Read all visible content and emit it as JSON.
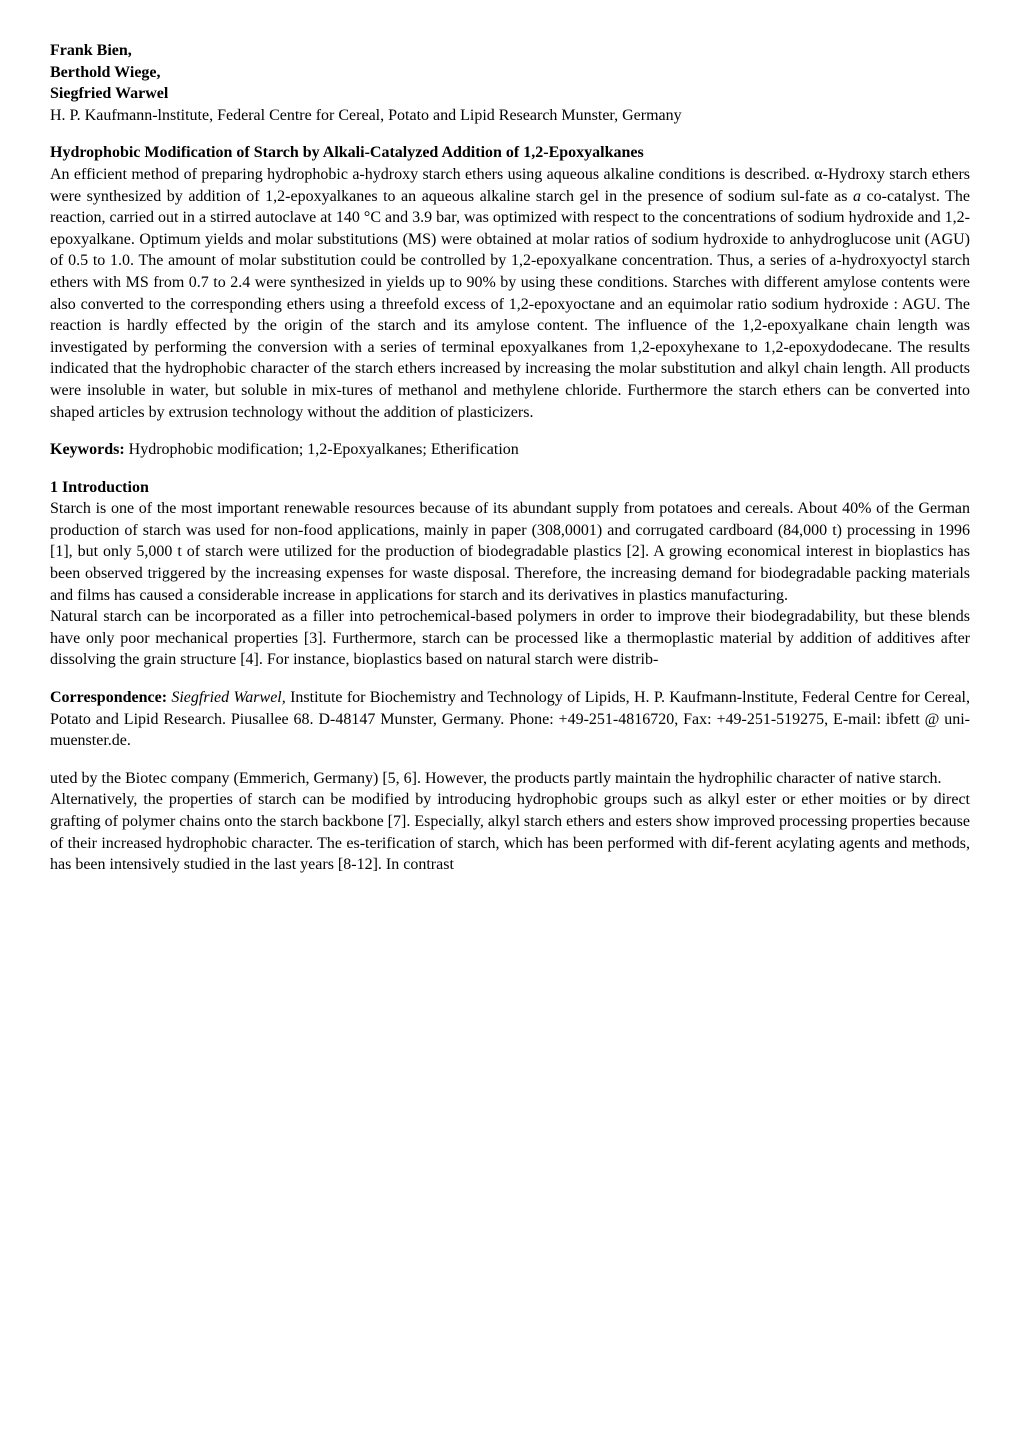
{
  "authors": {
    "a1": "Frank Bien,",
    "a2": "Berthold Wiege,",
    "a3": "Siegfried Warwel"
  },
  "affiliation": "H. P. Kaufmann-lnstitute, Federal Centre for Cereal, Potato and Lipid Research Munster, Germany",
  "title": "Hydrophobic Modification of Starch by Alkali-Catalyzed Addition of 1,2-Epoxyalkanes",
  "abstract": {
    "part1": "An efficient method of preparing hydrophobic a-hydroxy starch ethers using aqueous alkaline conditions is described. α-Hydroxy starch ethers were synthesized by addition of 1,2-epoxyalkanes to an aqueous alkaline starch gel in the presence of sodium sul-fate as ",
    "italic1": "a",
    "part2": " co-catalyst. The reaction, carried out in a stirred autoclave at 140 °C and 3.9 bar, was optimized with respect to the concentrations of sodium hydroxide and 1,2-epoxyalkane. Optimum yields and molar substitutions (MS) were obtained at molar ratios of sodium hydroxide to anhydroglucose unit (AGU) of 0.5 to 1.0. The amount of molar substitution could be controlled by 1,2-epoxyalkane concentration. Thus, a series of a-hydroxyoctyl starch ethers with MS from 0.7 to 2.4 were synthesized in yields up to 90% by using these conditions. Starches with different amylose contents were also converted to the corresponding ethers using a threefold excess of 1,2-epoxyoctane and an equimolar ratio sodium hydroxide : AGU. The reaction is hardly effected by the origin of the starch and its amylose content. The influence of the 1,2-epoxyalkane chain length was investigated by performing the conversion with a series of terminal epoxyalkanes from 1,2-epoxyhexane to 1,2-epoxydodecane. The results indicated that the hydrophobic character of the starch ethers increased by increasing the molar substitution and alkyl chain length. All products were insoluble in water, but soluble in mix-tures of methanol and methylene chloride. Furthermore the starch ethers can be converted into shaped articles by extrusion technology without the addition of plasticizers."
  },
  "keywords": {
    "label": "Keywords:",
    "text": " Hydrophobic modification; 1,2-Epoxyalkanes; Etherification"
  },
  "section1": {
    "heading": "1 Introduction",
    "para1": "Starch is one of the most important renewable resources because of its abundant supply from potatoes and cereals. About 40% of the German production of starch was used for non-food applications, mainly in paper (308,0001) and corrugated cardboard (84,000 t) processing in 1996 [1], but only 5,000 t of starch were utilized for the production of biodegradable plastics [2]. A growing economical interest in bioplastics has been observed triggered by the increasing expenses for waste disposal. Therefore, the increasing demand for biodegradable packing materials and films has caused a considerable increase in applications for starch and its derivatives in plastics manufacturing.",
    "para2": "Natural starch can be incorporated as a filler into petrochemical-based polymers in order to improve their biodegradability, but these blends have only poor mechanical properties [3]. Furthermore, starch can be processed like a thermoplastic material by addition of additives after dissolving the grain structure [4]. For instance, bioplastics based on natural starch were distrib-"
  },
  "correspondence": {
    "label": "Correspondence:",
    "name": " Siegfried Warwel,",
    "rest": " Institute for Biochemistry and Technology of Lipids, H. P. Kaufmann-lnstitute, Federal Centre for Cereal, Potato and Lipid Research. Piusallee 68. D-48147 Munster, Germany. Phone: +49-251-4816720, Fax: +49-251-519275, E-mail: ibfett @ uni-muenster.de."
  },
  "continuation": {
    "para1": "uted by the Biotec company (Emmerich, Germany) [5, 6]. However, the products partly maintain the hydrophilic character of native starch.",
    "para2": "Alternatively, the properties of starch can be modified by introducing hydrophobic groups such as alkyl ester or ether moities or by direct grafting of polymer chains onto the starch backbone [7]. Especially, alkyl starch ethers and esters show improved processing properties because of their increased hydrophobic character. The es-terification of starch, which has been performed with dif-ferent acylating agents and methods, has been intensively studied in the last years [8-12]. In contrast"
  }
}
